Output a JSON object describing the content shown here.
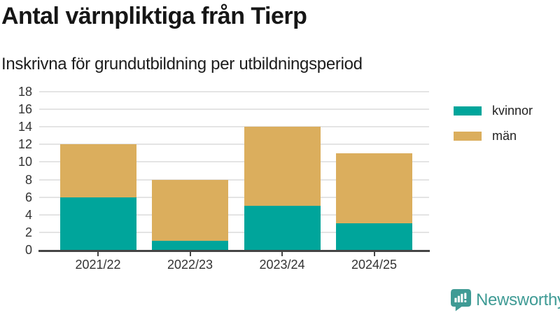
{
  "header": {
    "title": "Antal värnpliktiga från Tierp",
    "subtitle": "Inskrivna för grundutbildning per utbildningsperiod"
  },
  "chart_data": {
    "type": "bar",
    "stacked": true,
    "title": "Antal värnpliktiga från Tierp",
    "subtitle": "Inskrivna för grundutbildning per utbildningsperiod",
    "categories": [
      "2021/22",
      "2022/23",
      "2023/24",
      "2024/25"
    ],
    "series": [
      {
        "name": "kvinnor",
        "color": "#00A59B",
        "values": [
          6,
          1,
          5,
          3
        ]
      },
      {
        "name": "män",
        "color": "#DBAE5D",
        "values": [
          6,
          7,
          9,
          8
        ]
      }
    ],
    "totals": [
      12,
      8,
      14,
      11
    ],
    "xlabel": "",
    "ylabel": "",
    "ylim": [
      0,
      18
    ],
    "yticks": [
      0,
      2,
      4,
      6,
      8,
      10,
      12,
      14,
      16,
      18
    ],
    "grid": true,
    "legend_position": "right-top",
    "axis_color": "#454545",
    "gridline_color": "#e4e4e4",
    "tick_label_color": "#333333"
  },
  "branding": {
    "logo_text": "Newsworthy",
    "logo_color": "#3F9B95"
  }
}
